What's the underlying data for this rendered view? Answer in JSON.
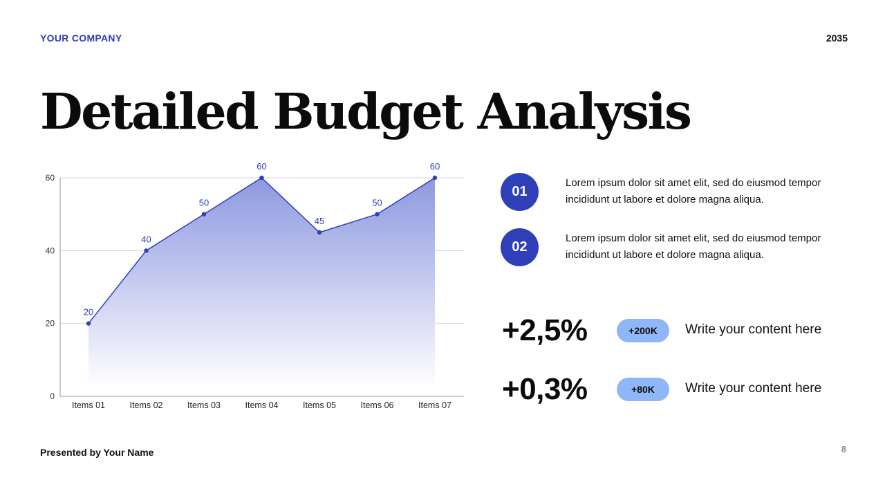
{
  "header": {
    "company": "YOUR COMPANY",
    "year": "2035"
  },
  "title": "Detailed Budget Analysis",
  "chart_data": {
    "type": "area",
    "categories": [
      "Items 01",
      "Items 02",
      "Items 03",
      "Items 04",
      "Items 05",
      "Items 06",
      "Items 07"
    ],
    "values": [
      20,
      40,
      50,
      60,
      45,
      50,
      60
    ],
    "data_labels": [
      "20",
      "40",
      "50",
      "60",
      "45",
      "50",
      "60"
    ],
    "y_ticks": [
      "0",
      "20",
      "40",
      "60"
    ],
    "ylim": [
      0,
      60
    ],
    "grid": true,
    "colors": {
      "line": "#2e3fb8",
      "fill_top": "#8e98e0",
      "fill_bottom": "#ffffff",
      "label": "#2e3fb8",
      "grid": "#d4d4d4"
    }
  },
  "points": [
    {
      "number": "01",
      "text": "Lorem ipsum dolor sit amet elit, sed do eiusmod tempor incididunt ut labore et dolore magna aliqua."
    },
    {
      "number": "02",
      "text": "Lorem ipsum dolor sit amet elit, sed do eiusmod tempor incididunt ut labore et dolore magna aliqua."
    }
  ],
  "stats": [
    {
      "value": "+2,5%",
      "pill": "+200K",
      "desc": "Write your content here"
    },
    {
      "value": "+0,3%",
      "pill": "+80K",
      "desc": "Write your content here"
    }
  ],
  "footer": {
    "presenter": "Presented by Your Name",
    "page": "8"
  },
  "colors": {
    "accent": "#2e3fb8",
    "pill": "#8fb7f7"
  }
}
